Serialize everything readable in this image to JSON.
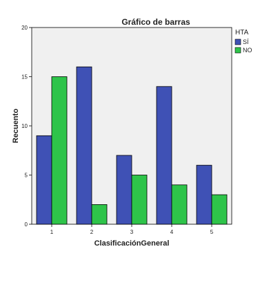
{
  "chart_data": {
    "type": "bar",
    "title": "Gráfico de barras",
    "xlabel": "ClasificaciónGeneral",
    "ylabel": "Recuento",
    "categories": [
      "1",
      "2",
      "3",
      "4",
      "5"
    ],
    "ylim": [
      0,
      20
    ],
    "yticks": [
      "0",
      "5",
      "10",
      "15",
      "20"
    ],
    "grid": false,
    "legend": {
      "title": "HTA",
      "placement": "top-right",
      "entries": [
        "SÍ",
        "NO"
      ]
    },
    "series": [
      {
        "name": "SÍ",
        "color": "#3f51b5",
        "values": [
          9,
          16,
          7,
          14,
          6
        ]
      },
      {
        "name": "NO",
        "color": "#2ec44a",
        "values": [
          15,
          2,
          5,
          4,
          3
        ]
      }
    ],
    "plot_background": "#f0f0f0",
    "bar_outline": "#000000"
  }
}
